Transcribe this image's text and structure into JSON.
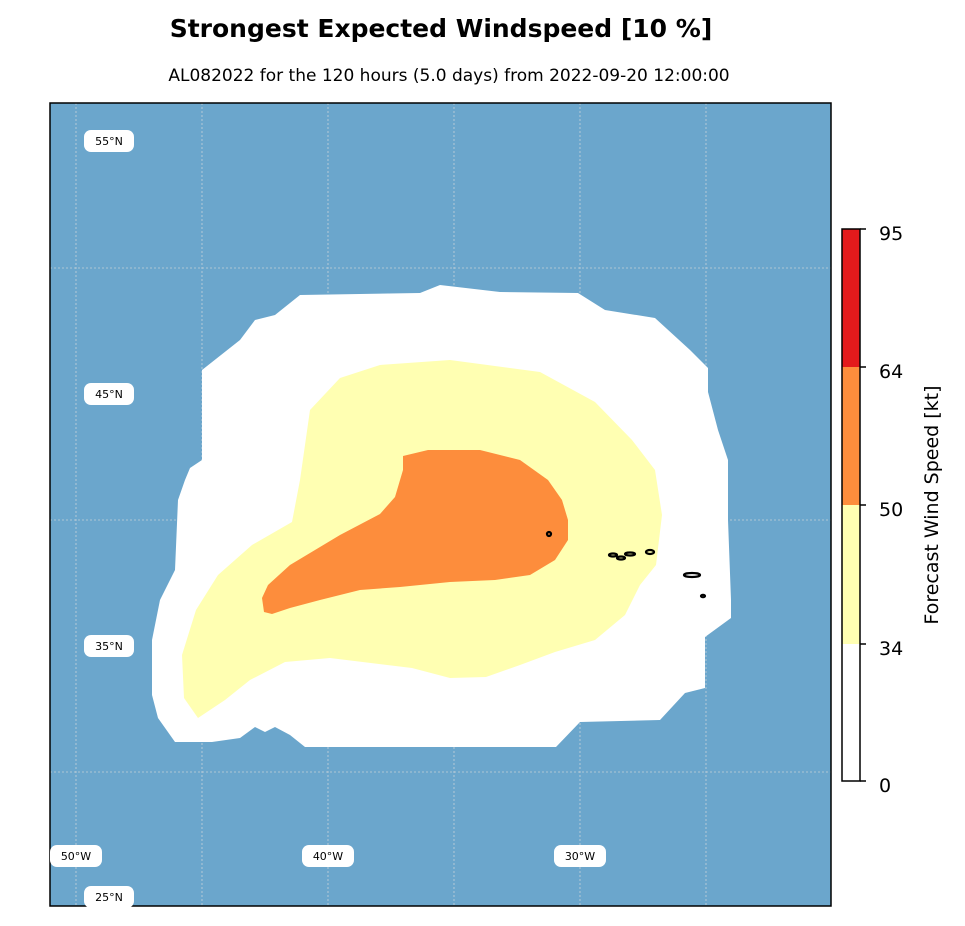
{
  "title": "Strongest Expected Windspeed [10 %]",
  "subtitle": "AL082022 for the 120 hours (5.0 days) from 2022-09-20 12:00:00",
  "map": {
    "ocean_color": "#6ba6cc",
    "lat_labels": [
      "55°N",
      "45°N",
      "35°N",
      "25°N"
    ],
    "lon_labels": [
      "50°W",
      "40°W",
      "30°W"
    ]
  },
  "colorbar": {
    "title": "Forecast Wind Speed [kt]",
    "ticks": [
      "0",
      "34",
      "50",
      "64",
      "95"
    ],
    "bands": [
      {
        "from": 0,
        "to": 34,
        "color": "#ffffff"
      },
      {
        "from": 34,
        "to": 50,
        "color": "#ffffb2"
      },
      {
        "from": 50,
        "to": 64,
        "color": "#fd8d3c"
      },
      {
        "from": 64,
        "to": 95,
        "color": "#e31a1c"
      }
    ]
  },
  "wind_zones": {
    "lt34": "#ffffff",
    "34to50": "#ffffb2",
    "50to64": "#fd8d3c"
  }
}
